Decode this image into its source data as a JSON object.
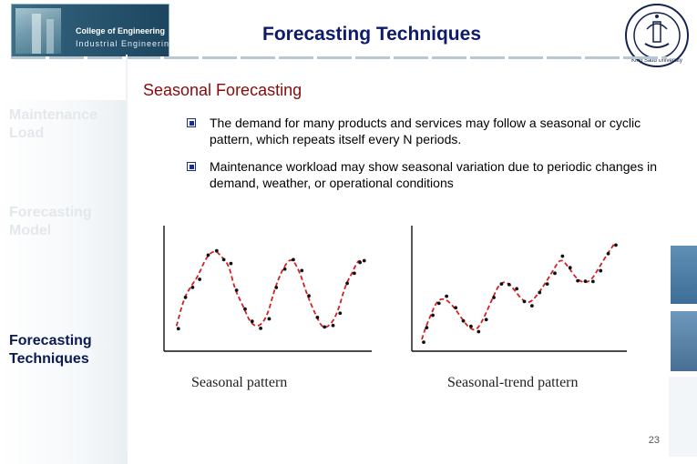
{
  "header": {
    "title": "Forecasting Techniques",
    "banner_line1": "College of Engineering",
    "banner_line2": "Industrial Engineering",
    "seal_text": "King Saud University"
  },
  "sidebar": {
    "items": [
      {
        "label": "Maintenance Load",
        "state": "dim"
      },
      {
        "label": "Forecasting Model",
        "state": "dim"
      },
      {
        "label": "Forecasting Techniques",
        "state": "active"
      }
    ]
  },
  "content": {
    "subtitle": "Seasonal Forecasting",
    "bullets": [
      "The demand for many products and services may follow a seasonal or cyclic pattern, which repeats itself every N periods.",
      "Maintenance workload may show seasonal variation due to periodic changes in demand, weather, or operational conditions"
    ]
  },
  "colors": {
    "title": "#0d1a6e",
    "subtitle": "#8a0a0a",
    "curve": "#d42020",
    "points": "#111111"
  },
  "chart_data": [
    {
      "type": "scatter",
      "title": "Seasonal pattern",
      "xlabel": "",
      "ylabel": "",
      "grid": false,
      "points": [
        [
          0.5,
          1.4
        ],
        [
          1,
          3.3
        ],
        [
          1.5,
          4.2
        ],
        [
          2,
          4.9
        ],
        [
          2.6,
          6.3
        ],
        [
          3.2,
          6.8
        ],
        [
          3.7,
          6.3
        ],
        [
          4.2,
          5.7
        ],
        [
          4.6,
          4.0
        ],
        [
          5.2,
          2.8
        ],
        [
          5.7,
          1.6
        ],
        [
          6.3,
          1.3
        ],
        [
          6.9,
          2.1
        ],
        [
          7.4,
          4.0
        ],
        [
          8.0,
          5.5
        ],
        [
          8.6,
          6.3
        ],
        [
          9.2,
          5.2
        ],
        [
          9.7,
          3.6
        ],
        [
          10.3,
          2.2
        ],
        [
          10.8,
          1.2
        ],
        [
          11.4,
          1.5
        ],
        [
          11.9,
          2.5
        ],
        [
          12.4,
          4.3
        ],
        [
          12.9,
          5.2
        ],
        [
          13.3,
          6.1
        ],
        [
          13.6,
          5.9
        ]
      ],
      "curve": "dashed seasonal curve"
    },
    {
      "type": "scatter",
      "title": "Seasonal-trend pattern",
      "xlabel": "",
      "ylabel": "",
      "grid": false,
      "points": [
        [
          0.3,
          0.5
        ],
        [
          0.5,
          1.3
        ],
        [
          0.9,
          2.5
        ],
        [
          1.3,
          3.6
        ],
        [
          1.8,
          3.8
        ],
        [
          2.4,
          3.1
        ],
        [
          2.9,
          2.2
        ],
        [
          3.4,
          1.4
        ],
        [
          3.9,
          1.2
        ],
        [
          4.4,
          2.3
        ],
        [
          4.9,
          3.7
        ],
        [
          5.4,
          5.0
        ],
        [
          5.9,
          5.1
        ],
        [
          6.4,
          4.4
        ],
        [
          6.9,
          3.6
        ],
        [
          7.4,
          3.4
        ],
        [
          7.9,
          4.1
        ],
        [
          8.4,
          5.0
        ],
        [
          8.9,
          6.0
        ],
        [
          9.4,
          7.0
        ],
        [
          9.9,
          6.3
        ],
        [
          10.4,
          5.4
        ],
        [
          10.9,
          5.0
        ],
        [
          11.4,
          5.2
        ],
        [
          11.9,
          6.2
        ],
        [
          12.4,
          7.2
        ],
        [
          12.9,
          8.1
        ]
      ],
      "curve": "dashed seasonal curve with upward trend"
    }
  ],
  "footer": {
    "page": "23"
  }
}
